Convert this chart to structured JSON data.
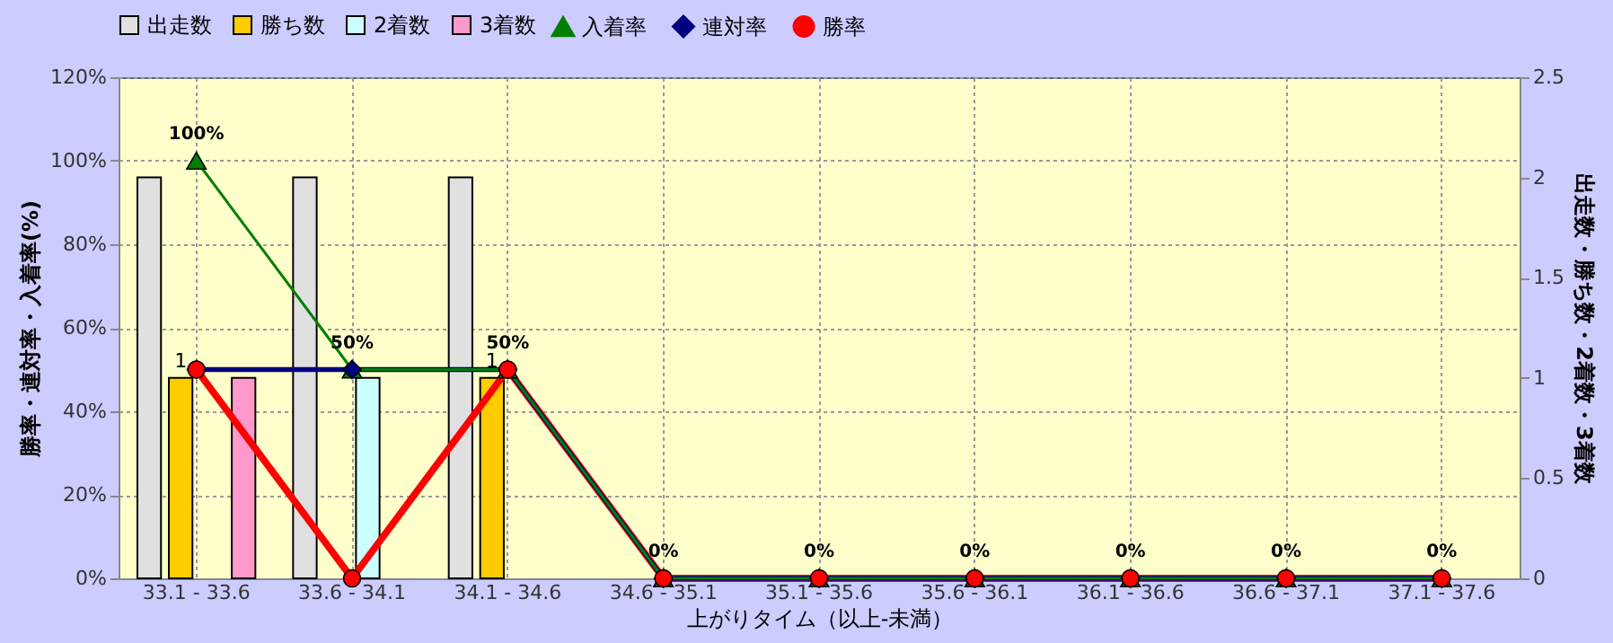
{
  "chart_data": {
    "type": "bar",
    "xlabel": "上がりタイム（以上-未満）",
    "ylabel": "勝率・連対率・入着率(%)",
    "y2label": "出走数・勝ち数・2着数・3着数",
    "categories": [
      "33.1 - 33.6",
      "33.6 - 34.1",
      "34.1 - 34.6",
      "34.6 - 35.1",
      "35.1 - 35.6",
      "35.6 - 36.1",
      "36.1 - 36.6",
      "36.6 - 37.1",
      "37.1 - 37.6"
    ],
    "series": [
      {
        "name": "出走数",
        "axis": "y2",
        "color": "#e0e0e0",
        "values": [
          2,
          2,
          2,
          0,
          0,
          0,
          0,
          0,
          0
        ]
      },
      {
        "name": "勝ち数",
        "axis": "y2",
        "color": "#ffcc00",
        "values": [
          1,
          0,
          1,
          0,
          0,
          0,
          0,
          0,
          0
        ],
        "value_labels": [
          "1",
          null,
          "1",
          null,
          null,
          null,
          null,
          null,
          null
        ]
      },
      {
        "name": "2着数",
        "axis": "y2",
        "color": "#ccffff",
        "values": [
          0,
          1,
          0,
          0,
          0,
          0,
          0,
          0,
          0
        ]
      },
      {
        "name": "3着数",
        "axis": "y2",
        "color": "#ff99cc",
        "values": [
          1,
          0,
          0,
          0,
          0,
          0,
          0,
          0,
          0
        ]
      },
      {
        "name": "入着率",
        "type": "line",
        "color": "#008000",
        "marker": "triangle",
        "values": [
          100,
          50,
          50,
          0,
          0,
          0,
          0,
          0,
          0
        ],
        "value_labels": [
          "100%",
          "50%",
          "50%",
          "0%",
          "0%",
          "0%",
          "0%",
          "0%",
          "0%"
        ]
      },
      {
        "name": "連対率",
        "type": "line",
        "color": "#000080",
        "marker": "diamond",
        "values": [
          50,
          50,
          50,
          0,
          0,
          0,
          0,
          0,
          0
        ]
      },
      {
        "name": "勝率",
        "type": "line",
        "color": "#ff0000",
        "marker": "circle",
        "values": [
          50,
          0,
          50,
          0,
          0,
          0,
          0,
          0,
          0
        ]
      }
    ],
    "ylim": [
      0,
      120
    ],
    "yticks": [
      {
        "value": 0,
        "label": "0%"
      },
      {
        "value": 20,
        "label": "20%"
      },
      {
        "value": 40,
        "label": "40%"
      },
      {
        "value": 60,
        "label": "60%"
      },
      {
        "value": 80,
        "label": "80%"
      },
      {
        "value": 100,
        "label": "100%"
      },
      {
        "value": 120,
        "label": "120%"
      }
    ],
    "y2lim": [
      0,
      2.5
    ],
    "y2ticks": [
      0,
      0.5,
      1,
      1.5,
      2,
      2.5
    ],
    "grid": true,
    "legend": "top"
  }
}
